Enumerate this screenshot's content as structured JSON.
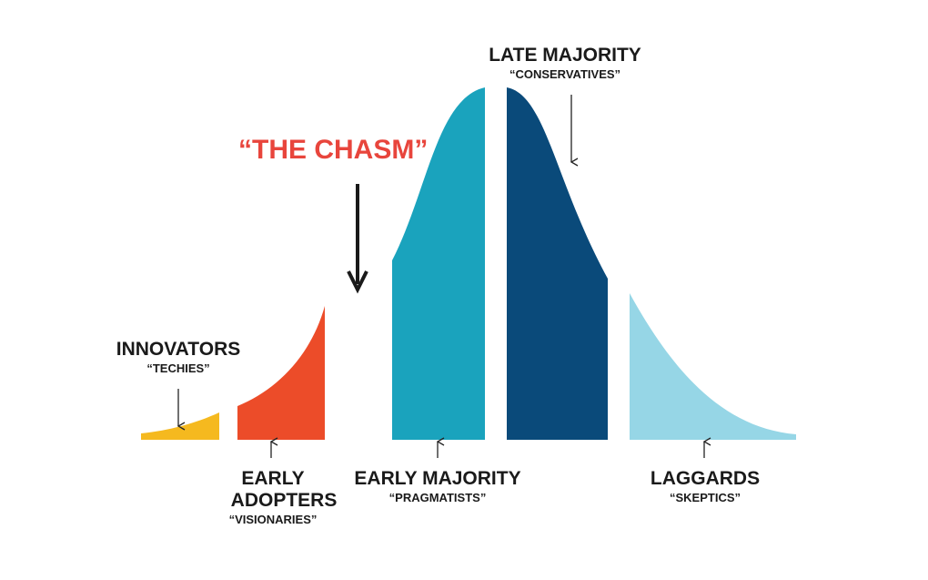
{
  "chasm": {
    "title": "“THE CHASM”",
    "color": "#e8453c"
  },
  "segments": [
    {
      "id": "innovators",
      "name": "INNOVATORS",
      "subtitle": "“TECHIES”",
      "color": "#f5b91f"
    },
    {
      "id": "early-adopters",
      "name_line1": "EARLY",
      "name_line2": "ADOPTERS",
      "subtitle": "“VISIONARIES”",
      "color": "#ec4c29"
    },
    {
      "id": "early-majority",
      "name": "EARLY MAJORITY",
      "subtitle": "“PRAGMATISTS”",
      "color": "#1aa3bd"
    },
    {
      "id": "late-majority",
      "name": "LATE MAJORITY",
      "subtitle": "“CONSERVATIVES”",
      "color": "#0a4a7a"
    },
    {
      "id": "laggards",
      "name": "LAGGARDS",
      "subtitle": "“SKEPTICS”",
      "color": "#96d6e6"
    }
  ]
}
